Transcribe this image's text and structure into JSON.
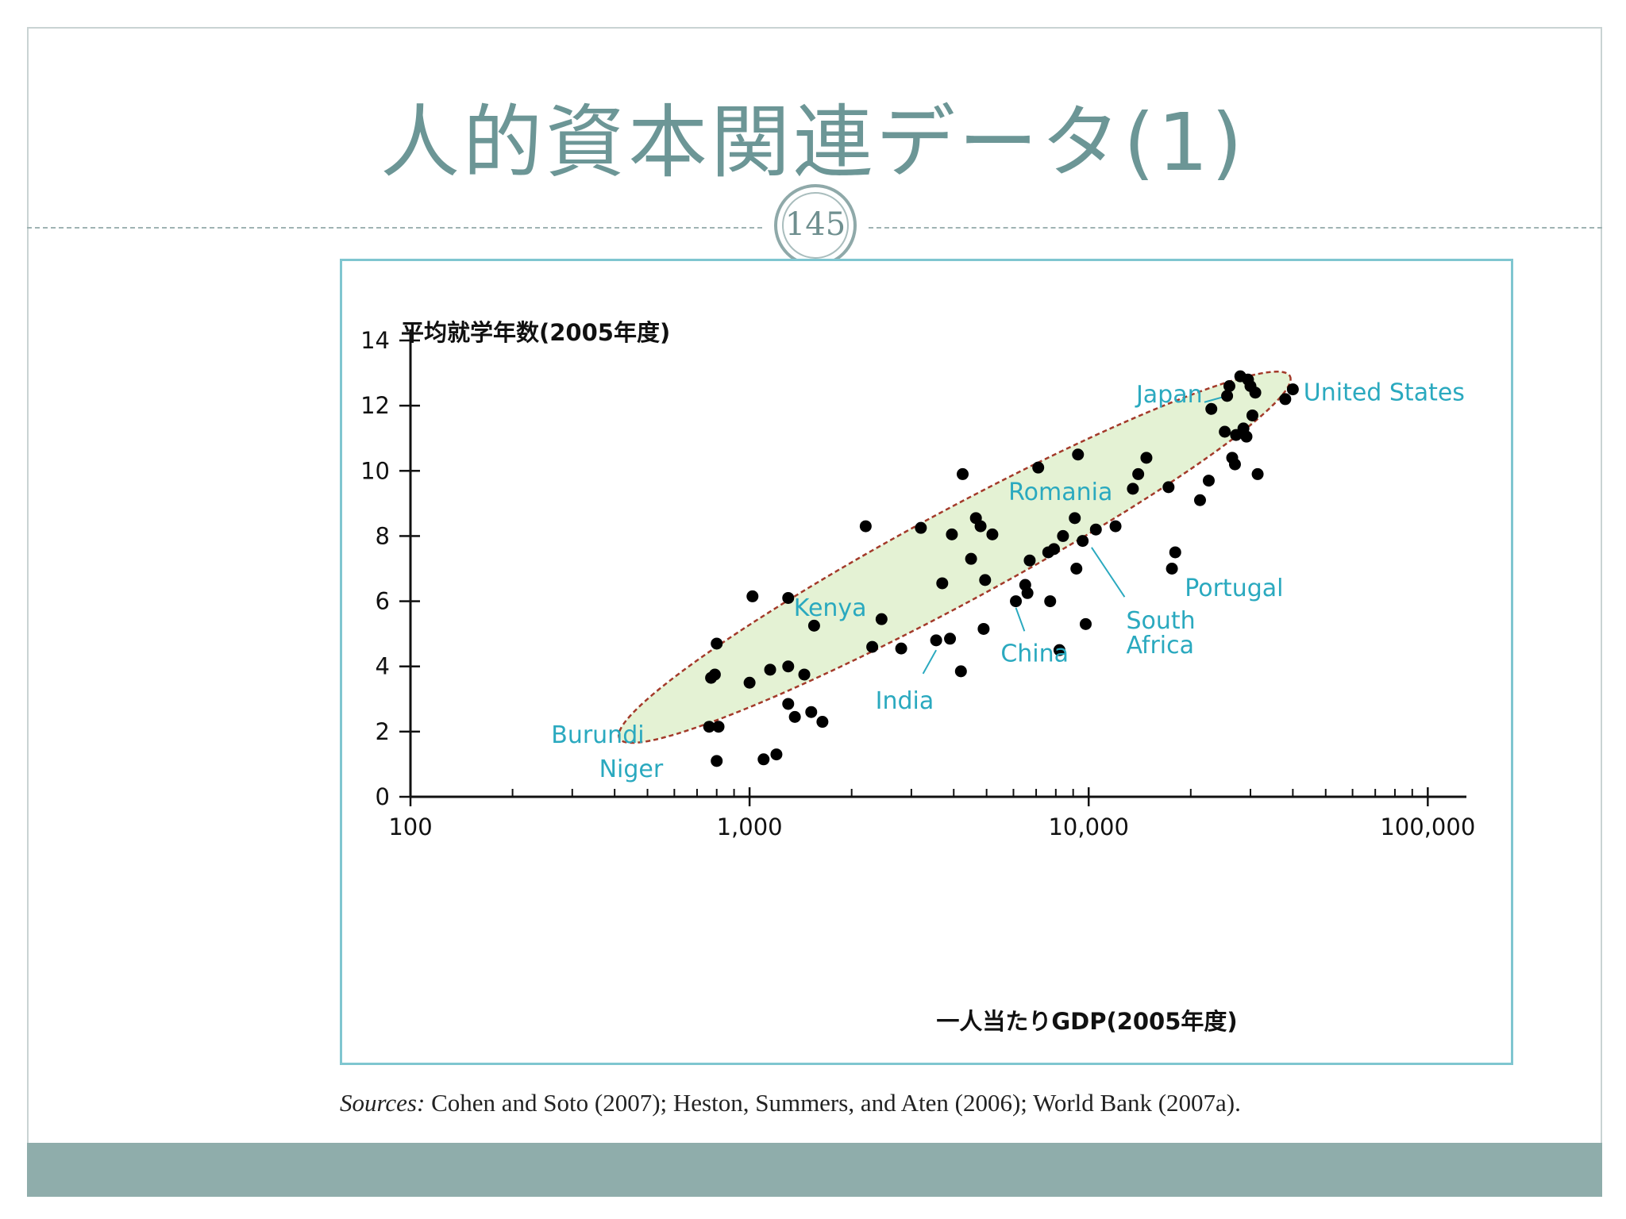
{
  "slide": {
    "title": "人的資本関連データ(1)",
    "page_number": "145"
  },
  "source": {
    "label": "Sources:",
    "text": " Cohen and Soto (2007); Heston, Summers, and Aten (2006); World Bank (2007a)."
  },
  "colors": {
    "title": "#6c9696",
    "label": "#2aa9bf",
    "point": "#000000",
    "ellipse_fill": "#e4f2d4",
    "ellipse_stroke": "#a33a2a",
    "frame": "#7fc6d0",
    "footer": "#8fadab"
  },
  "chart_data": {
    "type": "scatter",
    "xlabel": "一人当たりGDP(2005年度)",
    "ylabel": "平均就学年数(2005年度)",
    "x_scale": "log",
    "xlim": [
      100,
      130000
    ],
    "ylim": [
      0,
      14
    ],
    "x_ticks": [
      {
        "value": 100,
        "label": "100"
      },
      {
        "value": 1000,
        "label": "1,000"
      },
      {
        "value": 10000,
        "label": "10,000"
      },
      {
        "value": 100000,
        "label": "100,000"
      }
    ],
    "y_ticks": [
      0,
      2,
      4,
      6,
      8,
      10,
      12,
      14
    ],
    "grid": false,
    "highlight_ellipse": {
      "from": {
        "x": 450,
        "y": 2.0
      },
      "to": {
        "x": 36000,
        "y": 12.7
      },
      "half_width_y": 1.6
    },
    "points": [
      {
        "x": 800,
        "y": 1.1
      },
      {
        "x": 1100,
        "y": 1.15
      },
      {
        "x": 1200,
        "y": 1.3
      },
      {
        "x": 760,
        "y": 2.15
      },
      {
        "x": 810,
        "y": 2.15
      },
      {
        "x": 1300,
        "y": 2.85
      },
      {
        "x": 1360,
        "y": 2.45
      },
      {
        "x": 1520,
        "y": 2.6
      },
      {
        "x": 1640,
        "y": 2.3
      },
      {
        "x": 770,
        "y": 3.65
      },
      {
        "x": 790,
        "y": 3.75
      },
      {
        "x": 800,
        "y": 4.7
      },
      {
        "x": 1000,
        "y": 3.5
      },
      {
        "x": 1150,
        "y": 3.9
      },
      {
        "x": 1300,
        "y": 4.0
      },
      {
        "x": 1450,
        "y": 3.75
      },
      {
        "x": 1020,
        "y": 6.15
      },
      {
        "x": 1300,
        "y": 6.1
      },
      {
        "x": 1550,
        "y": 5.25
      },
      {
        "x": 2300,
        "y": 4.6
      },
      {
        "x": 2450,
        "y": 5.45
      },
      {
        "x": 2200,
        "y": 8.3
      },
      {
        "x": 2800,
        "y": 4.55
      },
      {
        "x": 3200,
        "y": 8.25
      },
      {
        "x": 3550,
        "y": 4.8
      },
      {
        "x": 3700,
        "y": 6.55
      },
      {
        "x": 3900,
        "y": 4.85
      },
      {
        "x": 3950,
        "y": 8.05
      },
      {
        "x": 4200,
        "y": 3.85
      },
      {
        "x": 4250,
        "y": 9.9
      },
      {
        "x": 4500,
        "y": 7.3
      },
      {
        "x": 4650,
        "y": 8.55
      },
      {
        "x": 4800,
        "y": 8.3
      },
      {
        "x": 4900,
        "y": 5.15
      },
      {
        "x": 4950,
        "y": 6.65
      },
      {
        "x": 5200,
        "y": 8.05
      },
      {
        "x": 6100,
        "y": 6.0
      },
      {
        "x": 6500,
        "y": 6.5
      },
      {
        "x": 6600,
        "y": 6.25
      },
      {
        "x": 6700,
        "y": 7.25
      },
      {
        "x": 7100,
        "y": 10.1
      },
      {
        "x": 7600,
        "y": 7.5
      },
      {
        "x": 7700,
        "y": 6.0
      },
      {
        "x": 7900,
        "y": 7.6
      },
      {
        "x": 8200,
        "y": 4.5
      },
      {
        "x": 8400,
        "y": 8.0
      },
      {
        "x": 9100,
        "y": 8.55
      },
      {
        "x": 9200,
        "y": 7.0
      },
      {
        "x": 9300,
        "y": 10.5
      },
      {
        "x": 9600,
        "y": 7.85
      },
      {
        "x": 9800,
        "y": 5.3
      },
      {
        "x": 10500,
        "y": 8.2
      },
      {
        "x": 12000,
        "y": 8.3
      },
      {
        "x": 13500,
        "y": 9.45
      },
      {
        "x": 14000,
        "y": 9.9
      },
      {
        "x": 14800,
        "y": 10.4
      },
      {
        "x": 17200,
        "y": 9.5
      },
      {
        "x": 17600,
        "y": 7.0
      },
      {
        "x": 18000,
        "y": 7.5
      },
      {
        "x": 21300,
        "y": 9.1
      },
      {
        "x": 22600,
        "y": 9.7
      },
      {
        "x": 23000,
        "y": 11.9
      },
      {
        "x": 25200,
        "y": 11.2
      },
      {
        "x": 25600,
        "y": 12.3
      },
      {
        "x": 26000,
        "y": 12.6
      },
      {
        "x": 26500,
        "y": 10.4
      },
      {
        "x": 27000,
        "y": 10.2
      },
      {
        "x": 27200,
        "y": 11.1
      },
      {
        "x": 28000,
        "y": 12.9
      },
      {
        "x": 28600,
        "y": 11.3
      },
      {
        "x": 29200,
        "y": 11.05
      },
      {
        "x": 29500,
        "y": 12.8
      },
      {
        "x": 30000,
        "y": 12.6
      },
      {
        "x": 30400,
        "y": 11.7
      },
      {
        "x": 31000,
        "y": 12.4
      },
      {
        "x": 31500,
        "y": 9.9
      },
      {
        "x": 38000,
        "y": 12.2
      },
      {
        "x": 40000,
        "y": 12.5
      }
    ],
    "annotations": [
      {
        "text": "Japan",
        "x": 13800,
        "y": 12.35,
        "anchor": "start",
        "line_to": {
          "x": 25600,
          "y": 12.3
        }
      },
      {
        "text": "United States",
        "x": 43000,
        "y": 12.4,
        "anchor": "start"
      },
      {
        "text": "Romania",
        "x": 5800,
        "y": 9.35,
        "anchor": "start"
      },
      {
        "text": "Kenya",
        "x": 1350,
        "y": 5.8,
        "anchor": "start"
      },
      {
        "text": "Portugal",
        "x": 19200,
        "y": 6.4,
        "anchor": "start"
      },
      {
        "text": "South",
        "x": 12900,
        "y": 5.4,
        "anchor": "start",
        "line_to": {
          "x": 10200,
          "y": 7.65
        }
      },
      {
        "text": "Africa",
        "x": 12900,
        "y": 4.65,
        "anchor": "start"
      },
      {
        "text": "China",
        "x": 5500,
        "y": 4.4,
        "anchor": "start",
        "line_to": {
          "x": 6100,
          "y": 5.8
        }
      },
      {
        "text": "India",
        "x": 2350,
        "y": 2.95,
        "anchor": "start",
        "line_to": {
          "x": 3550,
          "y": 4.5
        }
      },
      {
        "text": "Burundi",
        "x": 260,
        "y": 1.9,
        "anchor": "start"
      },
      {
        "text": "Niger",
        "x": 360,
        "y": 0.85,
        "anchor": "start"
      }
    ]
  }
}
